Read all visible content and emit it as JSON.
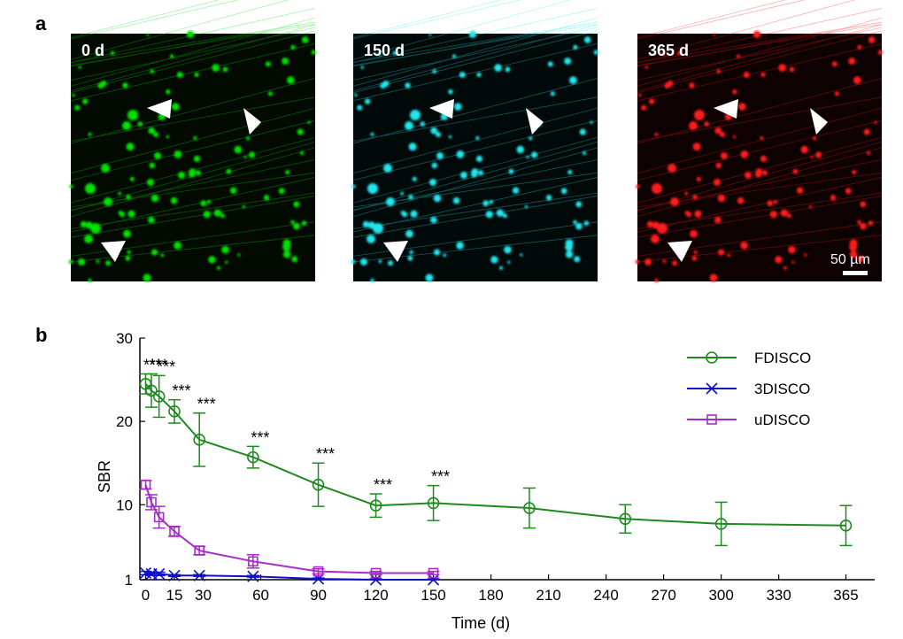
{
  "panel_a": {
    "letter": "a",
    "images": [
      {
        "label": "0 d",
        "color": "#00e000",
        "bg": "#020a02"
      },
      {
        "label": "150 d",
        "color": "#22e6ee",
        "bg": "#020909"
      },
      {
        "label": "365 d",
        "color": "#ff1a1a",
        "bg": "#0d0101"
      }
    ],
    "scale_bar_label": "50 µm"
  },
  "panel_b": {
    "letter": "b"
  },
  "chart_data": {
    "type": "line",
    "xlabel": "Time (d)",
    "ylabel": "SBR",
    "xticks": [
      0,
      15,
      30,
      60,
      90,
      120,
      150,
      180,
      210,
      240,
      270,
      300,
      330,
      365
    ],
    "yticks": [
      1,
      10,
      20,
      30
    ],
    "xlim": [
      -3,
      380
    ],
    "ylim": [
      1,
      30
    ],
    "legend_position": "top-right",
    "series": [
      {
        "name": "FDISCO",
        "color": "#1e8a1e",
        "marker": "circle",
        "x": [
          0,
          3,
          7,
          15,
          28,
          56,
          90,
          120,
          150,
          200,
          250,
          300,
          365
        ],
        "y": [
          24.5,
          23.7,
          23.0,
          21.2,
          17.8,
          15.7,
          12.4,
          9.9,
          10.2,
          9.6,
          8.3,
          7.7,
          7.5
        ],
        "err": [
          1.2,
          2.0,
          2.5,
          1.4,
          3.2,
          1.3,
          2.6,
          1.4,
          2.1,
          2.4,
          1.7,
          2.6,
          2.4
        ],
        "annotations": [
          "***",
          "***",
          "***",
          "***",
          "***",
          "***",
          "***",
          "***",
          "***",
          "",
          "",
          "",
          ""
        ]
      },
      {
        "name": "3DISCO",
        "color": "#1010c8",
        "marker": "x",
        "x": [
          0,
          3,
          7,
          15,
          28,
          56,
          90,
          120,
          150
        ],
        "y": [
          1.8,
          1.7,
          1.7,
          1.5,
          1.5,
          1.4,
          1.1,
          1.0,
          1.0
        ],
        "err": [
          0.2,
          0.2,
          0.2,
          0.1,
          0.1,
          0.1,
          0.1,
          0.1,
          0.1
        ],
        "annotations": []
      },
      {
        "name": "uDISCO",
        "color": "#a62ec8",
        "marker": "square",
        "x": [
          0,
          3,
          7,
          15,
          28,
          56,
          90,
          120,
          150
        ],
        "y": [
          12.4,
          10.3,
          8.5,
          6.8,
          4.5,
          3.2,
          2.0,
          1.8,
          1.8
        ],
        "err": [
          0.5,
          0.9,
          1.3,
          0.6,
          0.5,
          0.8,
          0.3,
          0.2,
          0.2
        ],
        "annotations": []
      }
    ]
  }
}
